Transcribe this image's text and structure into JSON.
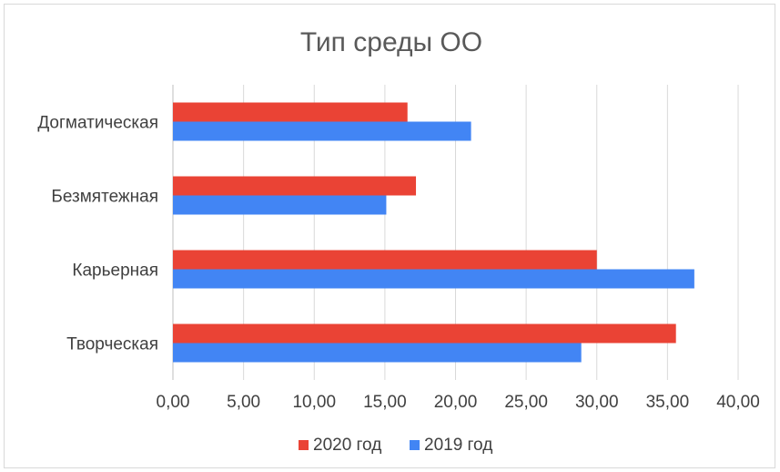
{
  "chart_data": {
    "type": "bar",
    "orientation": "horizontal",
    "title": "Тип среды ОО",
    "xlabel": "",
    "ylabel": "",
    "categories": [
      "Догматическая",
      "Безмятежная",
      "Карьерная",
      "Творческая"
    ],
    "series": [
      {
        "name": "2020 год",
        "color": "#ea4335",
        "values": [
          16.6,
          17.2,
          30.0,
          35.6
        ]
      },
      {
        "name": "2019 год",
        "color": "#4285f4",
        "values": [
          21.1,
          15.1,
          36.9,
          28.9
        ]
      }
    ],
    "xlim": [
      0,
      40
    ],
    "ticks": [
      "0,00",
      "5,00",
      "10,00",
      "15,00",
      "20,00",
      "25,00",
      "30,00",
      "35,00",
      "40,00"
    ],
    "grid": true,
    "legend_position": "bottom"
  }
}
